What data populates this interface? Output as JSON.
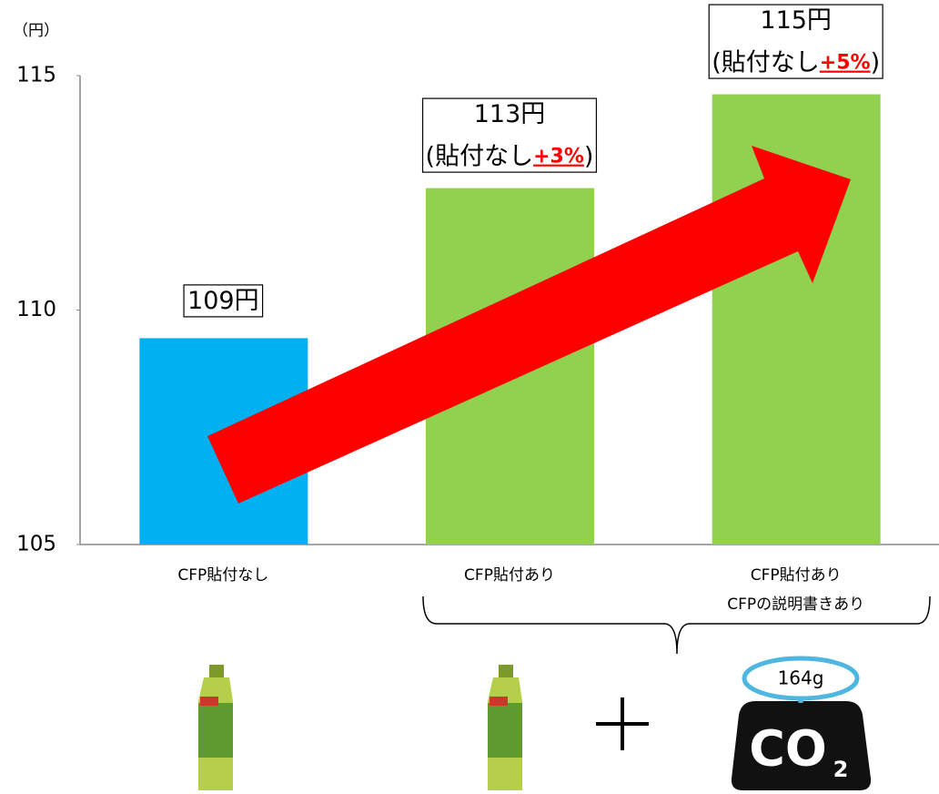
{
  "chart_data": {
    "type": "bar",
    "y_unit": "（円）",
    "categories": [
      "CFP貼付なし",
      "CFP貼付あり",
      "CFP貼付あり\nCFPの説明書きあり"
    ],
    "values": [
      109.4,
      112.6,
      114.6
    ],
    "value_labels": [
      "109円",
      "113円",
      "115円"
    ],
    "colors": [
      "#00b0f0",
      "#92d050",
      "#92d050"
    ],
    "annotations": [
      {
        "prefix": "(貼付なし",
        "highlight": "+3%",
        "suffix": ")"
      },
      {
        "prefix": "(貼付なし",
        "highlight": "+5%",
        "suffix": ")"
      }
    ],
    "ylim": [
      105,
      115
    ],
    "yticks": [
      105,
      110,
      115
    ],
    "icons": {
      "weight": "164g",
      "co2": "CO",
      "co2_sub": "2"
    }
  }
}
